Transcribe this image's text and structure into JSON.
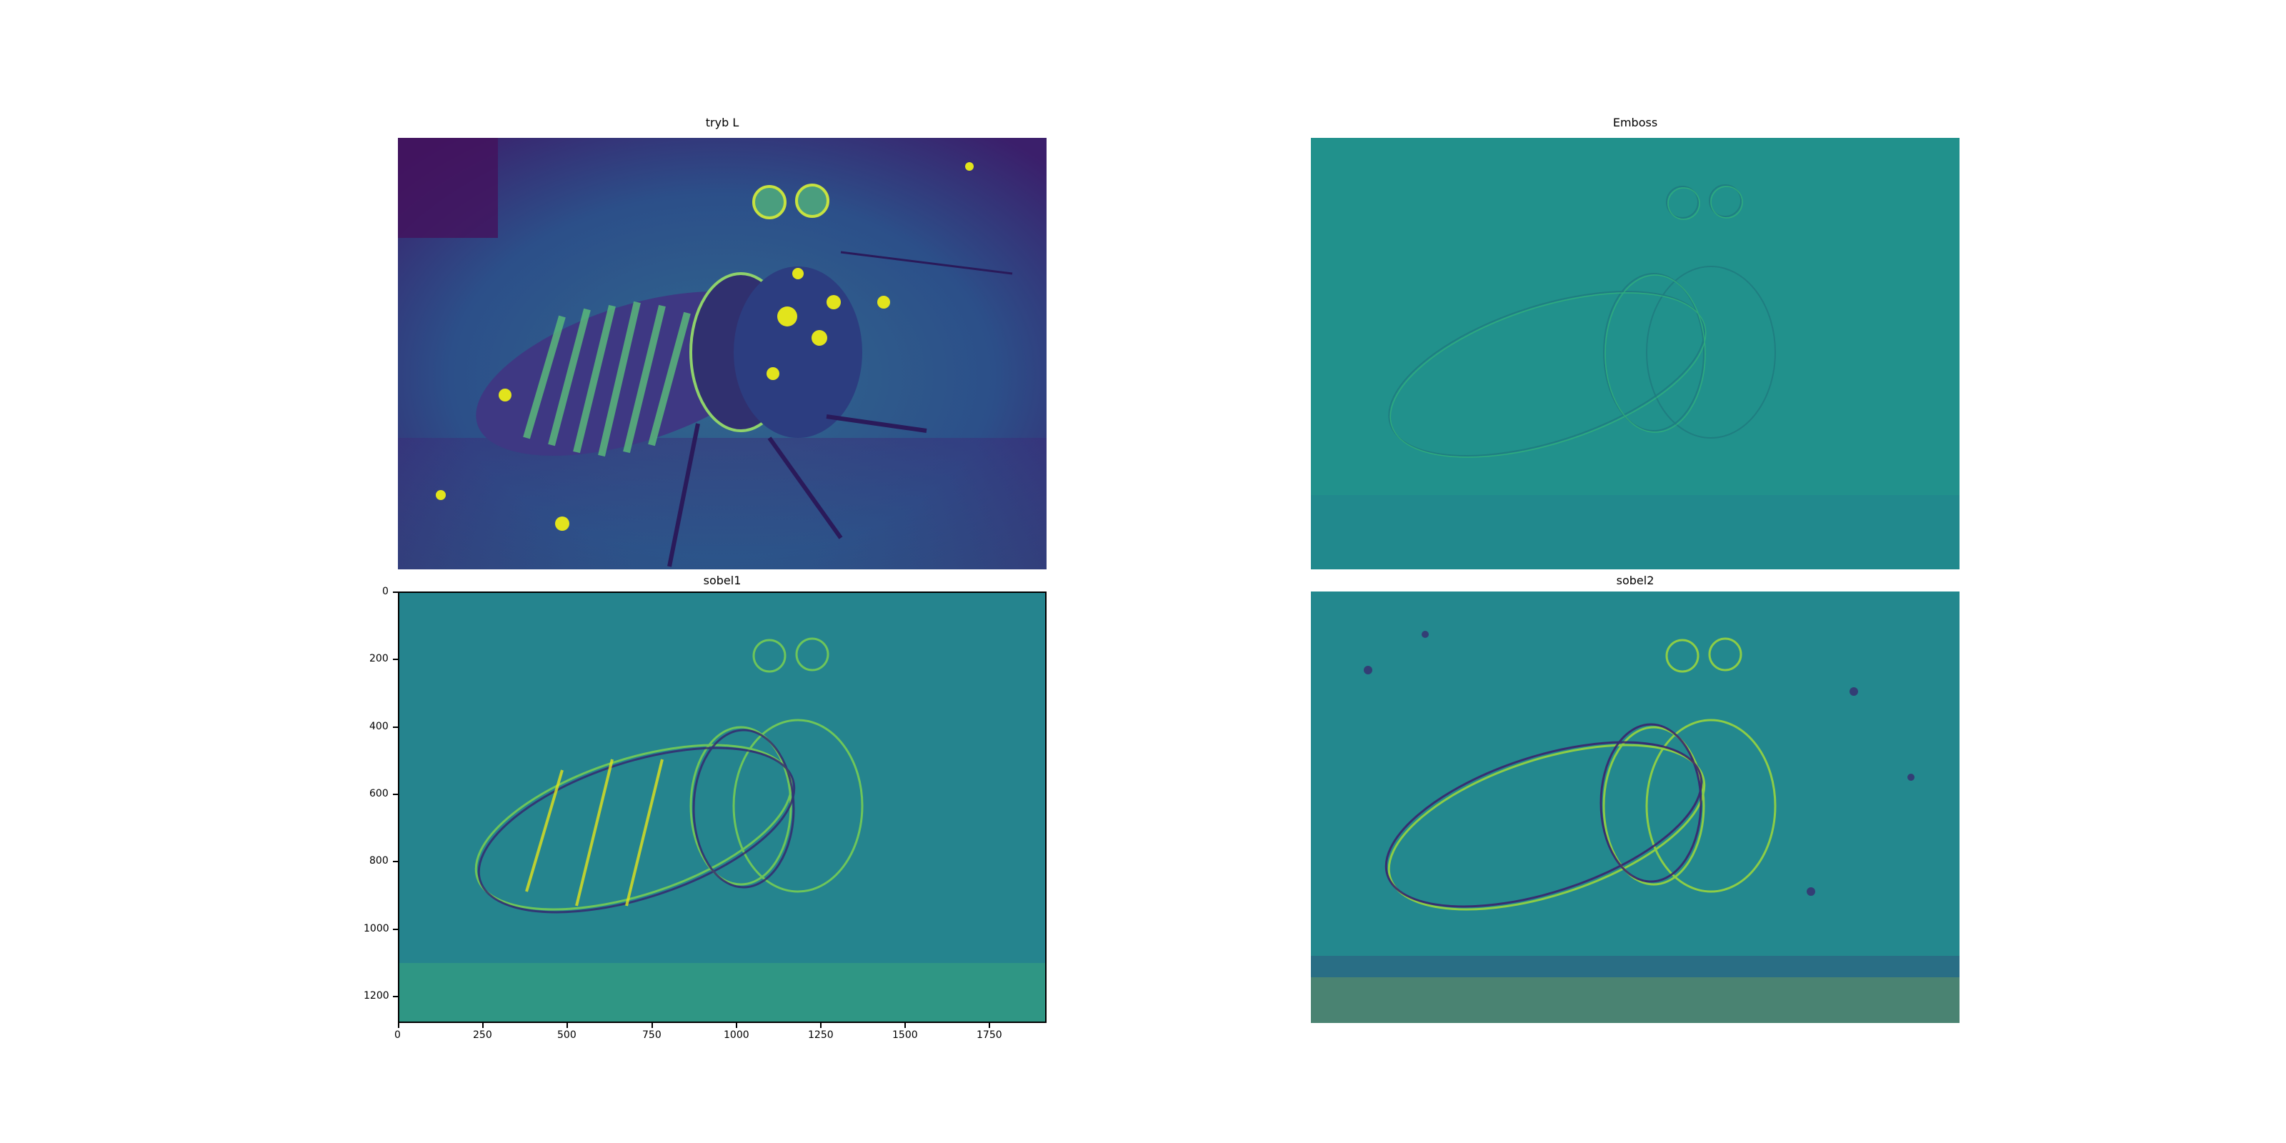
{
  "colormap": {
    "name": "viridis",
    "dark": "#440154",
    "mid": "#21918c",
    "bright": "#fde725"
  },
  "panels": [
    {
      "id": "tryb-l",
      "title": "tryb L"
    },
    {
      "id": "emboss",
      "title": "Emboss"
    },
    {
      "id": "sobel1",
      "title": "sobel1"
    },
    {
      "id": "sobel2",
      "title": "sobel2"
    }
  ],
  "sobel1_axes": {
    "x_ticks": [
      "0",
      "250",
      "500",
      "750",
      "1000",
      "1250",
      "1500",
      "1750"
    ],
    "y_ticks": [
      "0",
      "200",
      "400",
      "600",
      "800",
      "1000",
      "1200"
    ]
  }
}
